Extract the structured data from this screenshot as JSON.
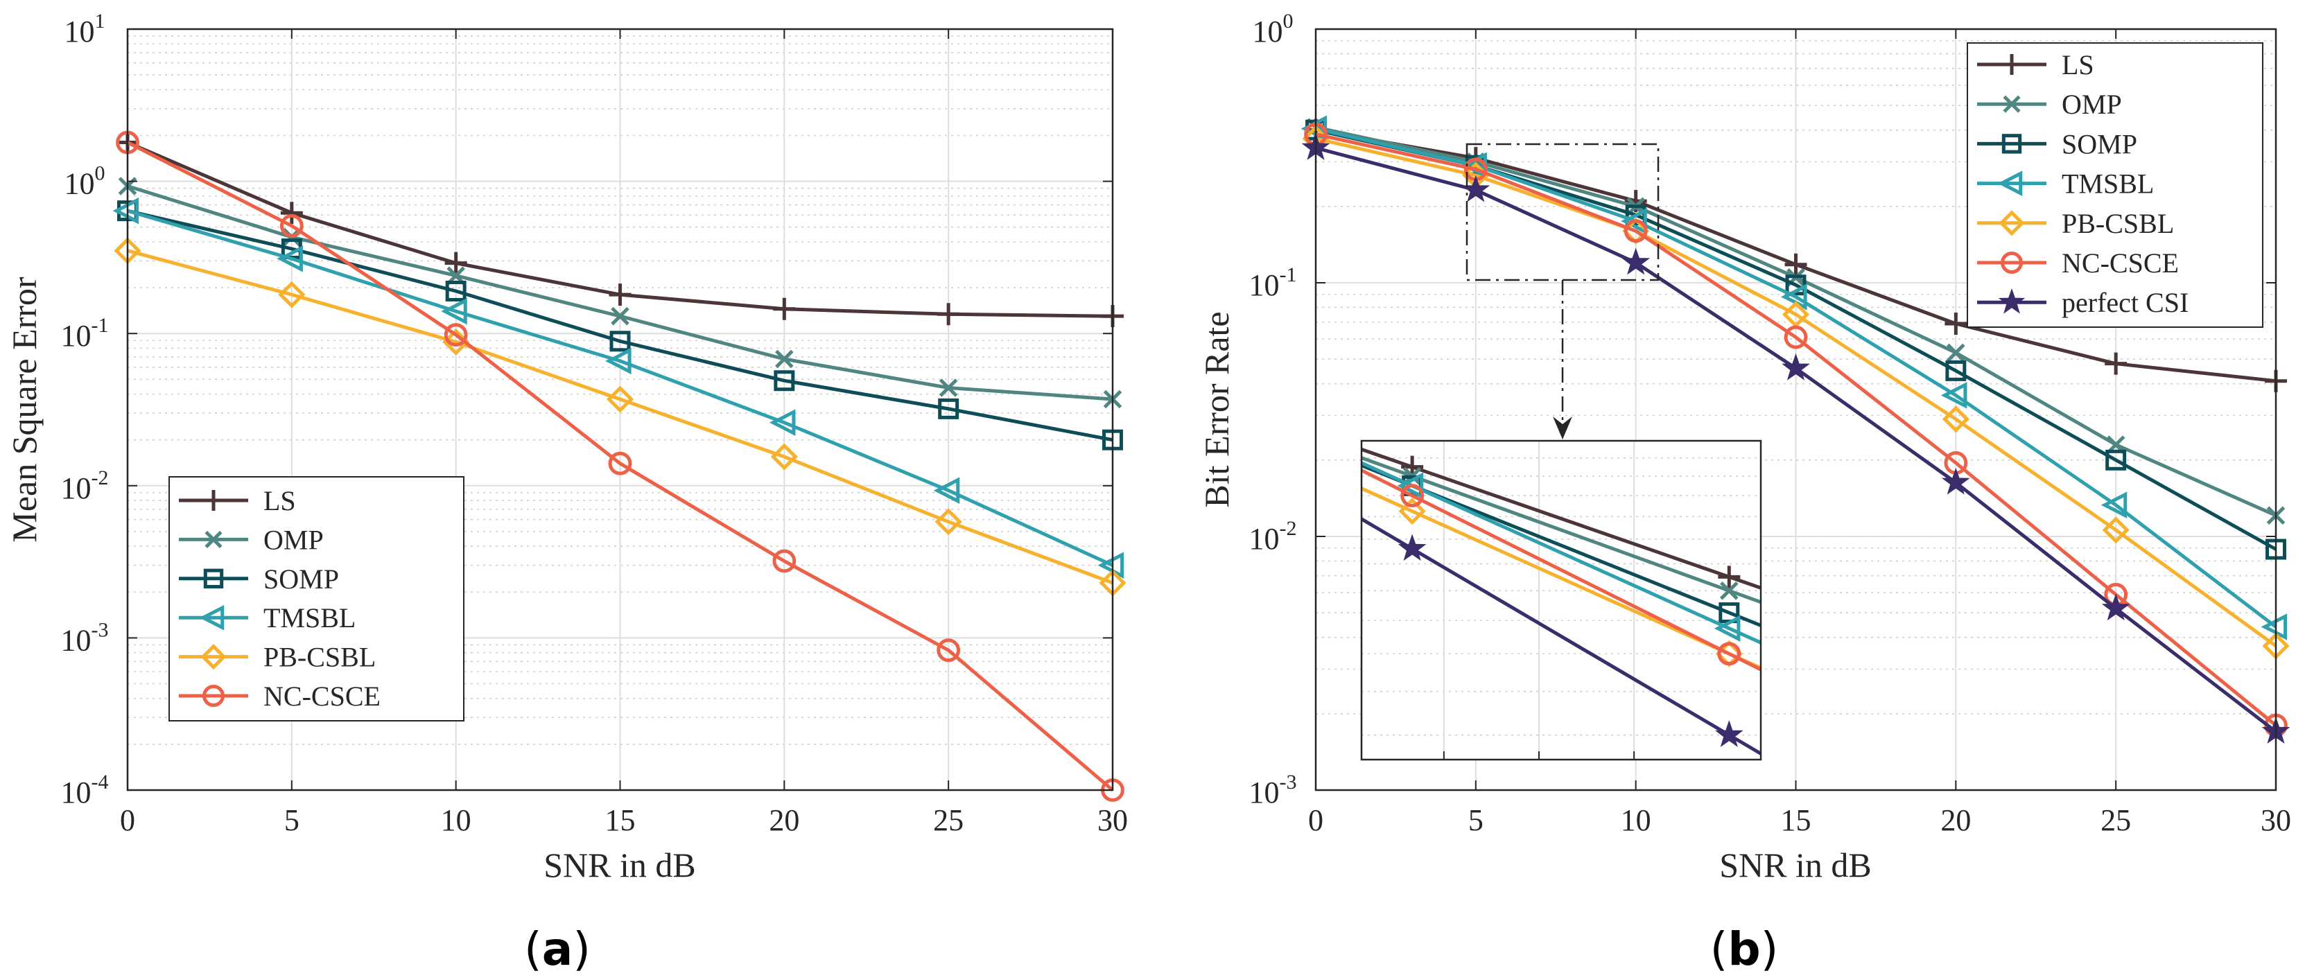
{
  "figure": {
    "panels": [
      {
        "label_open": "(",
        "label_letter": "a",
        "label_close": ")"
      },
      {
        "label_open": "(",
        "label_letter": "b",
        "label_close": ")"
      }
    ]
  },
  "styles": {
    "LS": {
      "color": "#4b3537",
      "marker": "plus"
    },
    "OMP": {
      "color": "#4f8682",
      "marker": "x"
    },
    "SOMP": {
      "color": "#0c4d58",
      "marker": "square"
    },
    "TMSBL": {
      "color": "#2fa0ae",
      "marker": "triangle-left"
    },
    "PB-CSBL": {
      "color": "#f8b12d",
      "marker": "diamond"
    },
    "NC-CSCE": {
      "color": "#ee6149",
      "marker": "circle"
    },
    "perfect CSI": {
      "color": "#3b2c6b",
      "marker": "star"
    }
  },
  "chart_data": [
    {
      "type": "line",
      "yscale": "log",
      "title": "",
      "xlabel": "SNR in dB",
      "ylabel": "Mean Square Error",
      "xlim": [
        0,
        30
      ],
      "ylim": [
        0.0001,
        10
      ],
      "x_ticks": [
        0,
        5,
        10,
        15,
        20,
        25,
        30
      ],
      "y_tick_exponents": [
        1,
        0,
        -1,
        -2,
        -3,
        -4
      ],
      "legend_position": "lower-left",
      "x": [
        0,
        5,
        10,
        15,
        20,
        25,
        30
      ],
      "series": [
        {
          "name": "LS",
          "values": [
            1.8,
            0.62,
            0.29,
            0.18,
            0.145,
            0.134,
            0.13
          ]
        },
        {
          "name": "OMP",
          "values": [
            0.93,
            0.43,
            0.24,
            0.13,
            0.068,
            0.044,
            0.037
          ]
        },
        {
          "name": "SOMP",
          "values": [
            0.64,
            0.36,
            0.19,
            0.089,
            0.049,
            0.032,
            0.02
          ]
        },
        {
          "name": "TMSBL",
          "values": [
            0.64,
            0.31,
            0.14,
            0.066,
            0.026,
            0.0093,
            0.003
          ]
        },
        {
          "name": "PB-CSBL",
          "values": [
            0.35,
            0.18,
            0.088,
            0.037,
            0.0155,
            0.0058,
            0.0023
          ]
        },
        {
          "name": "NC-CSCE",
          "values": [
            1.8,
            0.51,
            0.098,
            0.014,
            0.0032,
            0.00083,
            0.0001
          ]
        }
      ]
    },
    {
      "type": "line",
      "yscale": "log",
      "title": "",
      "xlabel": "SNR in dB",
      "ylabel": "Bit Error Rate",
      "xlim": [
        0,
        30
      ],
      "ylim": [
        0.001,
        1
      ],
      "x_ticks": [
        0,
        5,
        10,
        15,
        20,
        25,
        30
      ],
      "y_tick_exponents": [
        0,
        -1,
        -2,
        -3
      ],
      "legend_position": "top-right",
      "x": [
        0,
        5,
        10,
        15,
        20,
        25,
        30
      ],
      "series": [
        {
          "name": "LS",
          "values": [
            0.4,
            0.31,
            0.21,
            0.118,
            0.069,
            0.048,
            0.041
          ]
        },
        {
          "name": "OMP",
          "values": [
            0.41,
            0.3,
            0.2,
            0.105,
            0.053,
            0.023,
            0.0121
          ]
        },
        {
          "name": "SOMP",
          "values": [
            0.4,
            0.29,
            0.185,
            0.098,
            0.045,
            0.02,
            0.0089
          ]
        },
        {
          "name": "TMSBL",
          "values": [
            0.405,
            0.29,
            0.175,
            0.088,
            0.036,
            0.0133,
            0.0044
          ]
        },
        {
          "name": "PB-CSBL",
          "values": [
            0.37,
            0.265,
            0.16,
            0.075,
            0.029,
            0.0106,
            0.0037
          ]
        },
        {
          "name": "NC-CSCE",
          "values": [
            0.385,
            0.28,
            0.16,
            0.061,
            0.0195,
            0.0059,
            0.0018
          ]
        },
        {
          "name": "perfect CSI",
          "values": [
            0.34,
            0.232,
            0.12,
            0.046,
            0.0163,
            0.0052,
            0.0017
          ]
        }
      ],
      "zoom_box": {
        "xlim": [
          5,
          10
        ]
      }
    }
  ]
}
